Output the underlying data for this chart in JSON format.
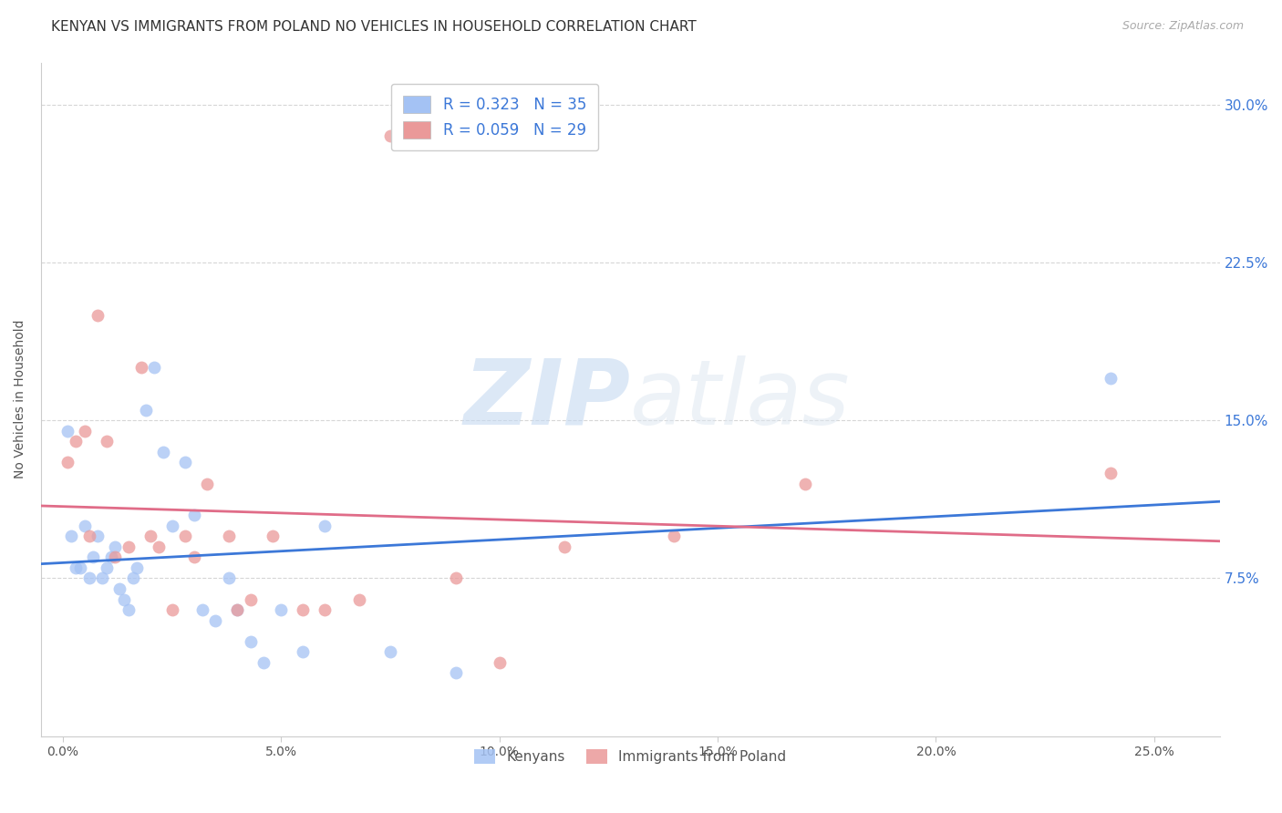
{
  "title": "KENYAN VS IMMIGRANTS FROM POLAND NO VEHICLES IN HOUSEHOLD CORRELATION CHART",
  "source": "Source: ZipAtlas.com",
  "ylabel": "No Vehicles in Household",
  "xlabel_ticks": [
    "0.0%",
    "5.0%",
    "10.0%",
    "15.0%",
    "20.0%",
    "25.0%"
  ],
  "xlabel_vals": [
    0.0,
    5.0,
    10.0,
    15.0,
    20.0,
    25.0
  ],
  "ylabel_ticks": [
    "7.5%",
    "15.0%",
    "22.5%",
    "30.0%"
  ],
  "ylabel_vals": [
    7.5,
    15.0,
    22.5,
    30.0
  ],
  "ylim": [
    0.0,
    32.0
  ],
  "xlim": [
    -0.5,
    26.5
  ],
  "legend_label1": "Kenyans",
  "legend_label2": "Immigrants from Poland",
  "kenyan_color": "#a4c2f4",
  "poland_color": "#ea9999",
  "kenyan_line_color": "#3c78d8",
  "poland_line_color": "#e06c88",
  "watermark_zip": "ZIP",
  "watermark_atlas": "atlas",
  "kenyan_x": [
    0.1,
    0.2,
    0.3,
    0.4,
    0.5,
    0.6,
    0.7,
    0.8,
    0.9,
    1.0,
    1.1,
    1.2,
    1.3,
    1.4,
    1.5,
    1.6,
    1.7,
    1.9,
    2.1,
    2.3,
    2.5,
    2.8,
    3.0,
    3.2,
    3.5,
    3.8,
    4.0,
    4.3,
    4.6,
    5.0,
    5.5,
    6.0,
    7.5,
    9.0,
    24.0
  ],
  "kenyan_y": [
    14.5,
    9.5,
    8.0,
    8.0,
    10.0,
    7.5,
    8.5,
    9.5,
    7.5,
    8.0,
    8.5,
    9.0,
    7.0,
    6.5,
    6.0,
    7.5,
    8.0,
    15.5,
    17.5,
    13.5,
    10.0,
    13.0,
    10.5,
    6.0,
    5.5,
    7.5,
    6.0,
    4.5,
    3.5,
    6.0,
    4.0,
    10.0,
    4.0,
    3.0,
    17.0
  ],
  "poland_x": [
    0.1,
    0.3,
    0.5,
    0.6,
    0.8,
    1.0,
    1.2,
    1.5,
    1.8,
    2.0,
    2.2,
    2.5,
    2.8,
    3.0,
    3.3,
    3.8,
    4.0,
    4.3,
    4.8,
    5.5,
    6.0,
    6.8,
    7.5,
    9.0,
    10.0,
    11.5,
    14.0,
    17.0,
    24.0
  ],
  "poland_y": [
    13.0,
    14.0,
    14.5,
    9.5,
    20.0,
    14.0,
    8.5,
    9.0,
    17.5,
    9.5,
    9.0,
    6.0,
    9.5,
    8.5,
    12.0,
    9.5,
    6.0,
    6.5,
    9.5,
    6.0,
    6.0,
    6.5,
    28.5,
    7.5,
    3.5,
    9.0,
    9.5,
    12.0,
    12.5
  ],
  "background_color": "#ffffff",
  "grid_color": "#cccccc",
  "title_fontsize": 11,
  "axis_label_fontsize": 10,
  "tick_fontsize": 10,
  "legend_fontsize": 11,
  "right_tick_color": "#3c78d8",
  "marker_size": 100
}
